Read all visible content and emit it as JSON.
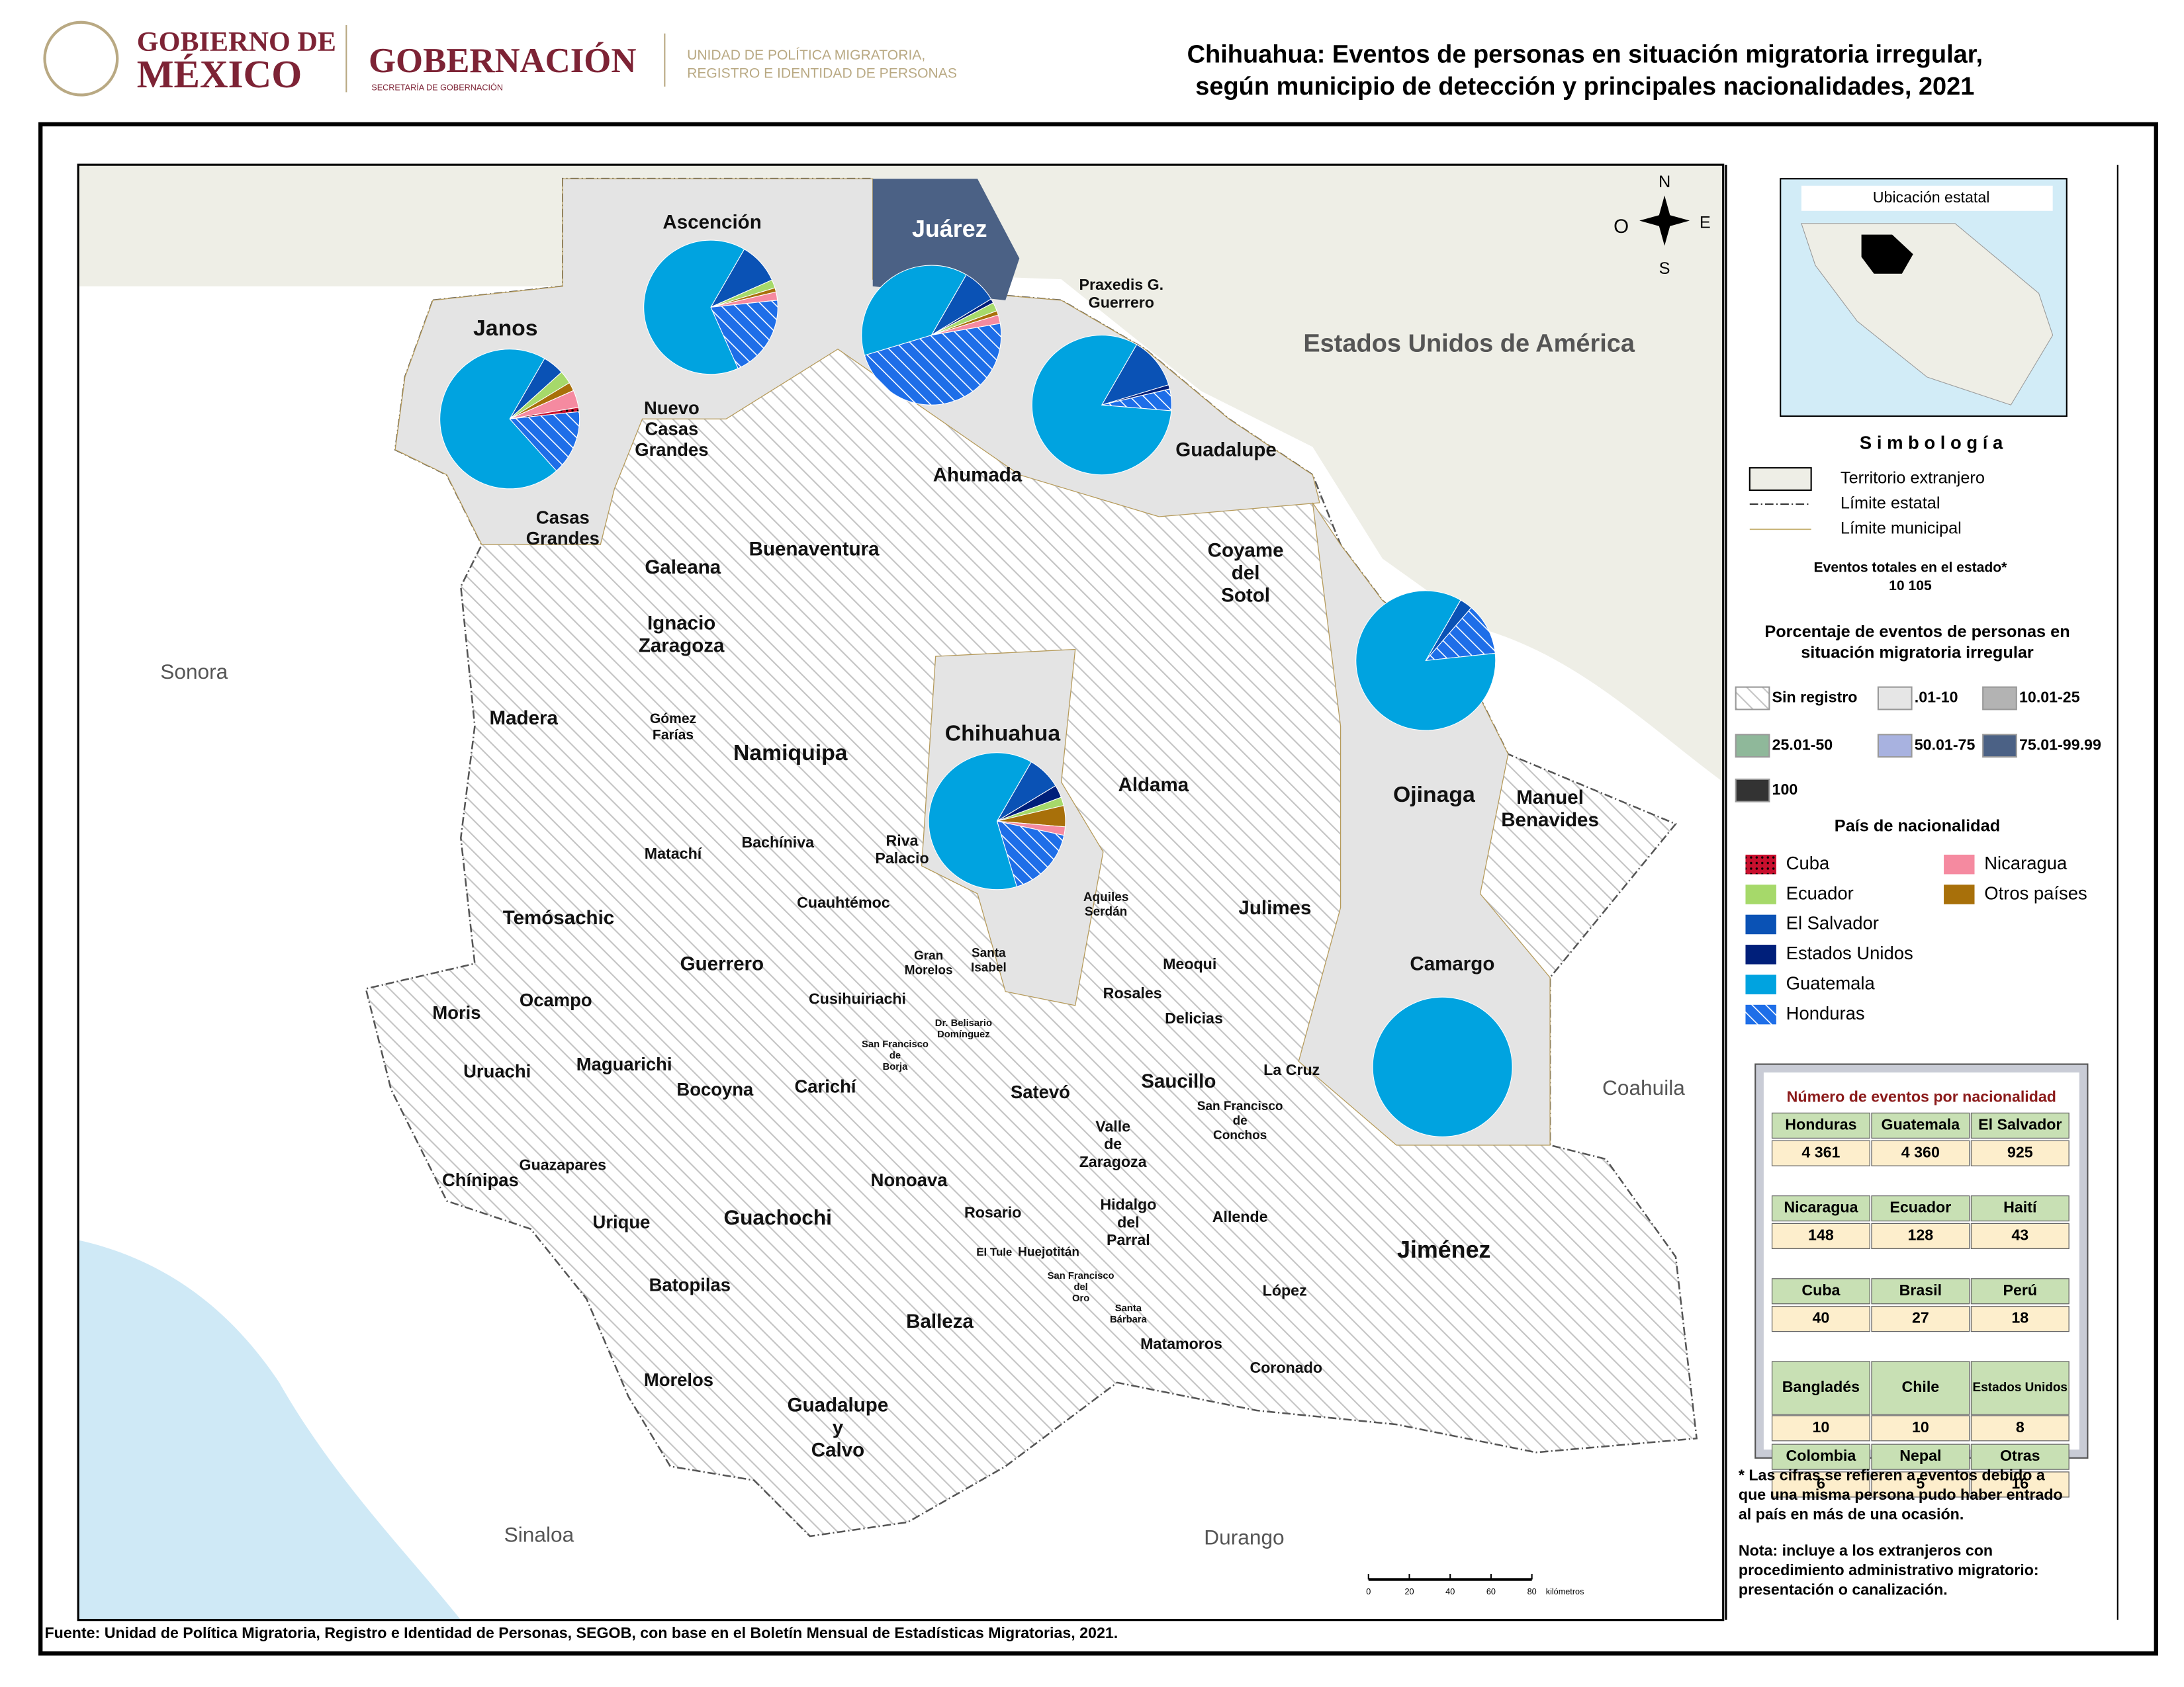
{
  "header": {
    "gob1": "GOBIERNO DE",
    "gob2": "MÉXICO",
    "gobernacion": "GOBERNACIÓN",
    "gob_sub": "SECRETARÍA DE GOBERNACIÓN",
    "unit1": "UNIDAD DE POLÍTICA MIGRATORIA,",
    "unit2": "REGISTRO E IDENTIDAD DE PERSONAS"
  },
  "title": [
    "Chihuahua: Eventos de personas en situación migratoria irregular,",
    "según municipio de detección y principales nacionalidades, 2021"
  ],
  "compass": {
    "n": "N",
    "s": "S",
    "e": "E",
    "o": "O"
  },
  "regions": [
    "Estados Unidos de América",
    "Sonora",
    "Coahuila",
    "Sinaloa",
    "Durango"
  ],
  "municipalities": [
    [
      "Janos"
    ],
    [
      "Ascención"
    ],
    [
      "Juárez"
    ],
    [
      "Praxedis G.",
      "Guerrero"
    ],
    [
      "Nuevo",
      "Casas",
      "Grandes"
    ],
    [
      "Ahumada"
    ],
    [
      "Guadalupe"
    ],
    [
      "Casas",
      "Grandes"
    ],
    [
      "Galeana"
    ],
    [
      "Buenaventura"
    ],
    [
      "Coyame",
      "del",
      "Sotol"
    ],
    [
      "Ignacio",
      "Zaragoza"
    ],
    [
      "Madera"
    ],
    [
      "Gómez",
      "Farías"
    ],
    [
      "Namiquipa"
    ],
    [
      "Chihuahua"
    ],
    [
      "Aldama"
    ],
    [
      "Ojinaga"
    ],
    [
      "Manuel",
      "Benavides"
    ],
    [
      "Matachí"
    ],
    [
      "Bachíniva"
    ],
    [
      "Riva",
      "Palacio"
    ],
    [
      "Cuauhtémoc"
    ],
    [
      "Aquiles",
      "Serdán"
    ],
    [
      "Julimes"
    ],
    [
      "Temósachic"
    ],
    [
      "Camargo"
    ],
    [
      "Guerrero"
    ],
    [
      "Gran",
      "Morelos"
    ],
    [
      "Santa",
      "Isabel"
    ],
    [
      "Meoqui"
    ],
    [
      "Moris"
    ],
    [
      "Ocampo"
    ],
    [
      "Cusihuiriachi"
    ],
    [
      "Rosales"
    ],
    [
      "Delicias"
    ],
    [
      "Dr. Belisario",
      "Domínguez"
    ],
    [
      "Uruachi"
    ],
    [
      "Maguarichi"
    ],
    [
      "San Francisco",
      "de",
      "Borja"
    ],
    [
      "Bocoyna"
    ],
    [
      "Carichí"
    ],
    [
      "Satevó"
    ],
    [
      "Saucillo"
    ],
    [
      "La Cruz"
    ],
    [
      "San Francisco",
      "de",
      "Conchos"
    ],
    [
      "Valle",
      "de",
      "Zaragoza"
    ],
    [
      "Guazapares"
    ],
    [
      "Chínipas"
    ],
    [
      "Nonoava"
    ],
    [
      "Rosario"
    ],
    [
      "Urique"
    ],
    [
      "Guachochi"
    ],
    [
      "Hidalgo",
      "del",
      "Parral"
    ],
    [
      "Allende"
    ],
    [
      "Jiménez"
    ],
    [
      "El Tule"
    ],
    [
      "Huejotitán"
    ],
    [
      "Batopilas"
    ],
    [
      "San Francisco",
      "del",
      "Oro"
    ],
    [
      "Santa",
      "Bárbara"
    ],
    [
      "López"
    ],
    [
      "Balleza"
    ],
    [
      "Matamoros"
    ],
    [
      "Coronado"
    ],
    [
      "Morelos"
    ],
    [
      "Guadalupe",
      "y",
      "Calvo"
    ]
  ],
  "scale_bar": {
    "ticks": [
      0,
      20,
      40,
      60,
      80
    ],
    "unit": "kilómetros"
  },
  "inset_title": "Ubicación estatal",
  "legend": {
    "title": "S i m b o l o g í a",
    "items": [
      "Territorio extranjero",
      "Límite estatal",
      "Límite municipal"
    ],
    "total_label": "Eventos totales en el estado*",
    "total": "10 105",
    "percent_title": [
      "Porcentaje de eventos de personas en",
      "situación migratoria irregular"
    ],
    "classes": [
      {
        "label": "Sin registro",
        "color": "hatch"
      },
      {
        "label": ".01-10",
        "color": "#e6e6e6"
      },
      {
        "label": "10.01-25",
        "color": "#b3b3b3"
      },
      {
        "label": "25.01-50",
        "color": "#8fb89a"
      },
      {
        "label": "50.01-75",
        "color": "#a8b2e0"
      },
      {
        "label": "75.01-99.99",
        "color": "#4b6185"
      },
      {
        "label": "100",
        "color": "#333333"
      }
    ],
    "nationality_title": "País de nacionalidad",
    "nationalities": [
      {
        "name": "Cuba",
        "color": "#c8102e"
      },
      {
        "name": "Ecuador",
        "color": "#a6d96a"
      },
      {
        "name": "El Salvador",
        "color": "#0a52b5"
      },
      {
        "name": "Estados Unidos",
        "color": "#001f7a"
      },
      {
        "name": "Guatemala",
        "color": "#00a3e0"
      },
      {
        "name": "Honduras",
        "color": "#1e6ee8"
      },
      {
        "name": "Nicaragua",
        "color": "#f58aa0"
      },
      {
        "name": "Otros países",
        "color": "#a8700a"
      }
    ]
  },
  "pies": [
    {
      "values": [
        1,
        3,
        5,
        0,
        70,
        15,
        4,
        2
      ]
    },
    {
      "values": [
        0,
        2,
        10,
        0,
        65,
        20,
        2,
        1
      ]
    },
    {
      "values": [
        0,
        2,
        8,
        1,
        38,
        48,
        2,
        1
      ]
    },
    {
      "values": [
        0,
        0,
        12,
        1,
        82,
        5,
        0,
        0
      ]
    },
    {
      "values": [
        0,
        0,
        3,
        0,
        85,
        12,
        0,
        0
      ]
    },
    {
      "values": [
        0,
        2,
        8,
        3,
        63,
        17,
        2,
        5
      ]
    },
    {
      "values": [
        0,
        0,
        0,
        0,
        100,
        0,
        0,
        0
      ]
    }
  ],
  "table": {
    "title": "Número de eventos por nacionalidad",
    "rows": [
      [
        "Honduras",
        "Guatemala",
        "El Salvador"
      ],
      [
        "4 361",
        "4 360",
        "925"
      ],
      [
        "Nicaragua",
        "Ecuador",
        "Haití"
      ],
      [
        "148",
        "128",
        "43"
      ],
      [
        "Cuba",
        "Brasil",
        "Perú"
      ],
      [
        "40",
        "27",
        "18"
      ],
      [
        "Bangladés",
        "Chile",
        "Estados Unidos"
      ],
      [
        "10",
        "10",
        "8"
      ],
      [
        "Colombia",
        "Nepal",
        "Otras"
      ],
      [
        "6",
        "5",
        "16"
      ]
    ]
  },
  "notes": [
    "* Las cifras se refieren a eventos debido a",
    "que una misma persona pudo haber entrado",
    "al país en más de una ocasión.",
    "Nota: incluye a los extranjeros con",
    "procedimiento administrativo migratorio:",
    "presentación o canalización."
  ],
  "source": "Fuente: Unidad de Política Migratoria, Registro e Identidad de Personas, SEGOB, con base en el Boletín Mensual de Estadísticas Migratorias, 2021."
}
